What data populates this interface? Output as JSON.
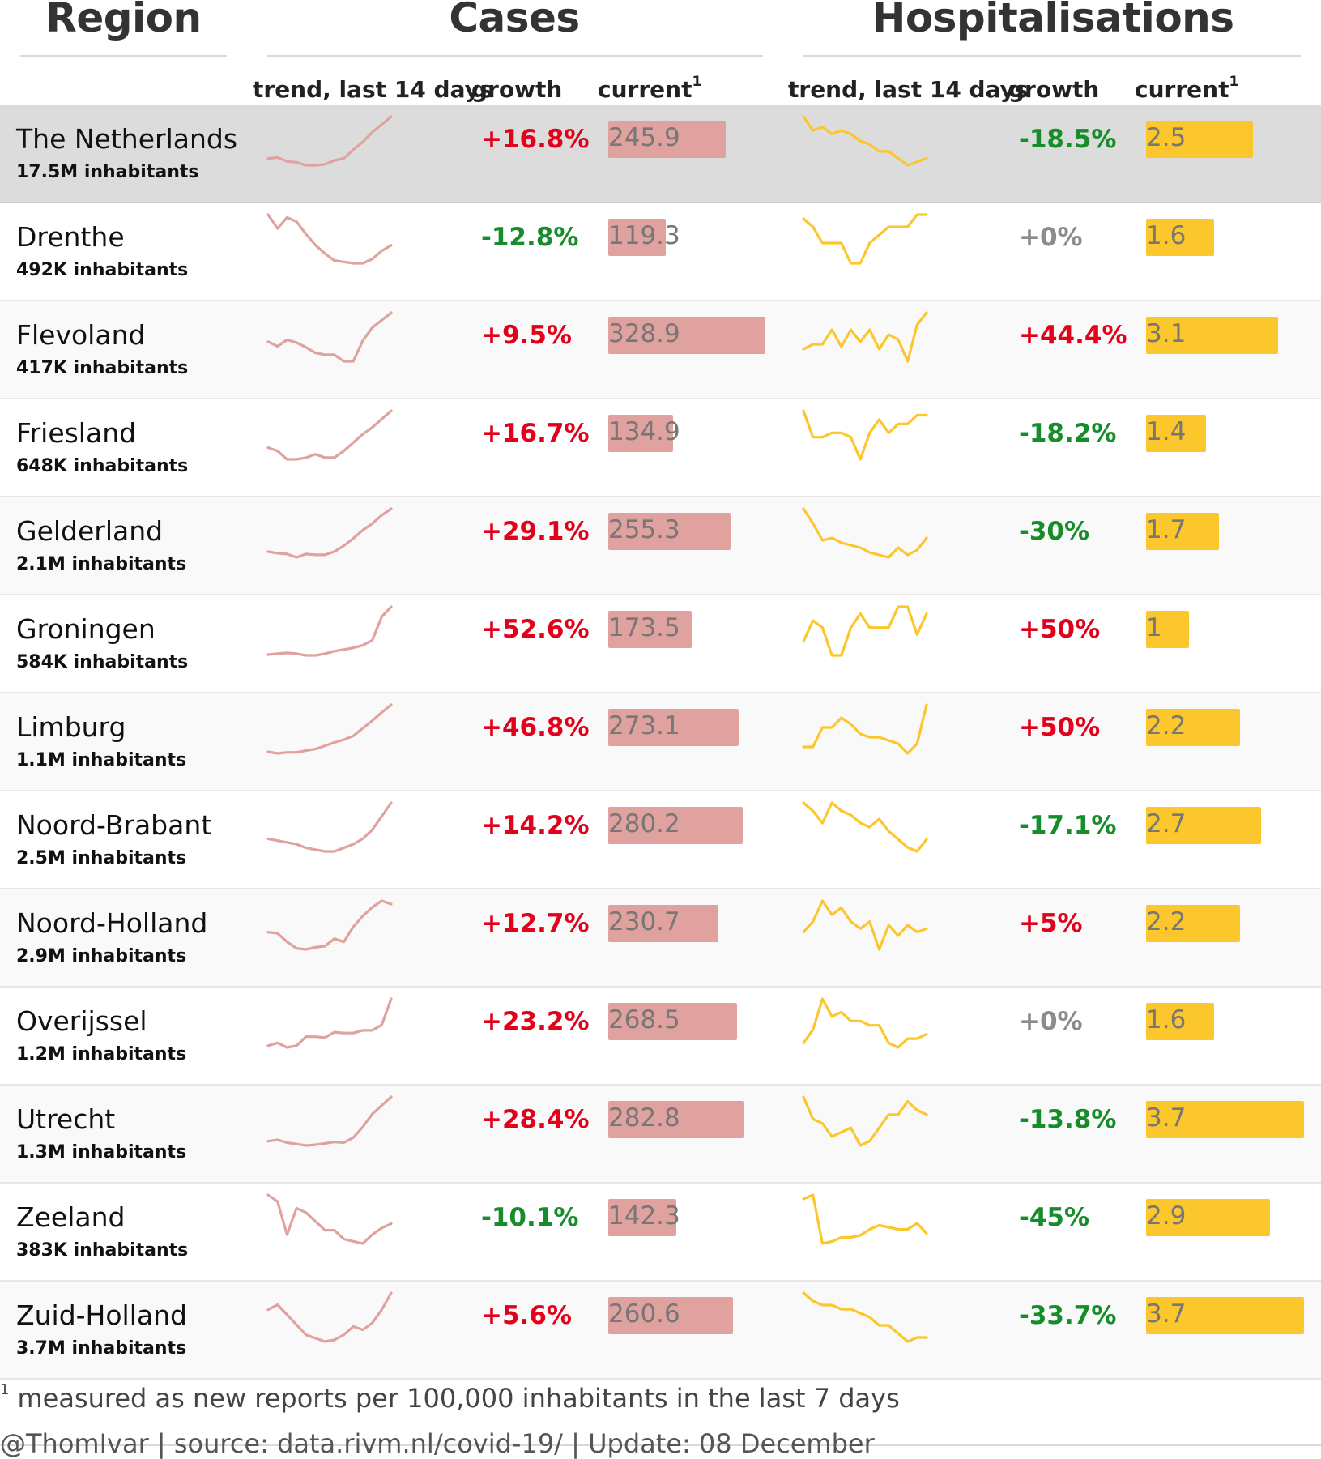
{
  "header": {
    "groups": {
      "region": "Region",
      "cases": "Cases",
      "hosp": "Hospitalisations"
    },
    "columns": {
      "trend": "trend, last 14 days",
      "growth": "growth",
      "current": "current",
      "current_sup": "1"
    }
  },
  "colors": {
    "cases_series": "#dfa29f",
    "hosp_series": "#fcc62d",
    "positive_growth": "#e2001a",
    "negative_growth": "#178c2b",
    "zero_growth": "#8c8c8c",
    "highlight_row": "#dcdcdc"
  },
  "chart_data": {
    "type": "table",
    "bar_max": {
      "cases": 330,
      "hosp": 3.7
    },
    "rows": [
      {
        "region": "The Netherlands",
        "sub": "17.5M inhabitants",
        "highlight": true,
        "cases_growth": "+16.8%",
        "cases_current": 245.9,
        "cases_current_label": "245.9",
        "hosp_growth": "-18.5%",
        "hosp_current": 2.5,
        "hosp_current_label": "2.5",
        "cases_trend": [
          203,
          204,
          200,
          199,
          196,
          196,
          197,
          201,
          203,
          212,
          220,
          230,
          238,
          246
        ],
        "hosp_trend": [
          3.2,
          3.0,
          3.05,
          2.95,
          3.0,
          2.95,
          2.85,
          2.8,
          2.7,
          2.7,
          2.6,
          2.5,
          2.55,
          2.6
        ]
      },
      {
        "region": "Drenthe",
        "sub": "492K inhabitants",
        "cases_growth": "-12.8%",
        "cases_current": 119.3,
        "cases_current_label": "119.3",
        "hosp_growth": "+0%",
        "hosp_current": 1.6,
        "hosp_current_label": "1.6",
        "cases_trend": [
          150,
          140,
          148,
          145,
          136,
          128,
          122,
          117,
          116,
          115,
          115,
          118,
          124,
          128
        ],
        "hosp_trend": [
          1.5,
          1.3,
          0.9,
          0.9,
          0.9,
          0.4,
          0.4,
          0.9,
          1.1,
          1.3,
          1.3,
          1.3,
          1.6,
          1.6
        ]
      },
      {
        "region": "Flevoland",
        "sub": "417K inhabitants",
        "cases_growth": "+9.5%",
        "cases_current": 328.9,
        "cases_current_label": "328.9",
        "hosp_growth": "+44.4%",
        "hosp_current": 3.1,
        "hosp_current_label": "3.1",
        "cases_trend": [
          295,
          290,
          297,
          294,
          289,
          283,
          281,
          281,
          274,
          274,
          296,
          310,
          318,
          326
        ],
        "hosp_trend": [
          1.6,
          1.8,
          1.8,
          2.4,
          1.7,
          2.4,
          1.9,
          2.4,
          1.6,
          2.2,
          2.0,
          1.1,
          2.6,
          3.1
        ]
      },
      {
        "region": "Friesland",
        "sub": "648K inhabitants",
        "cases_growth": "+16.7%",
        "cases_current": 134.9,
        "cases_current_label": "134.9",
        "hosp_growth": "-18.2%",
        "hosp_current": 1.4,
        "hosp_current_label": "1.4",
        "cases_trend": [
          112,
          110,
          105,
          105,
          106,
          108,
          106,
          106,
          110,
          115,
          120,
          124,
          129,
          134
        ],
        "hosp_trend": [
          1.8,
          1.2,
          1.2,
          1.3,
          1.3,
          1.2,
          0.7,
          1.3,
          1.6,
          1.3,
          1.5,
          1.5,
          1.7,
          1.7
        ]
      },
      {
        "region": "Gelderland",
        "sub": "2.1M inhabitants",
        "cases_growth": "+29.1%",
        "cases_current": 255.3,
        "cases_current_label": "255.3",
        "hosp_growth": "-30%",
        "hosp_current": 1.7,
        "hosp_current_label": "1.7",
        "cases_trend": [
          200,
          198,
          197,
          193,
          197,
          196,
          196,
          200,
          207,
          216,
          226,
          234,
          244,
          252
        ],
        "hosp_trend": [
          2.7,
          2.4,
          2.05,
          2.1,
          2.0,
          1.95,
          1.9,
          1.8,
          1.75,
          1.7,
          1.9,
          1.75,
          1.85,
          2.1
        ]
      },
      {
        "region": "Groningen",
        "sub": "584K inhabitants",
        "cases_growth": "+52.6%",
        "cases_current": 173.5,
        "cases_current_label": "173.5",
        "hosp_growth": "+50%",
        "hosp_current": 1,
        "hosp_current_label": "1",
        "cases_trend": [
          115,
          116,
          117,
          116,
          114,
          114,
          116,
          119,
          121,
          123,
          126,
          132,
          160,
          172
        ],
        "hosp_trend": [
          0.6,
          0.9,
          0.8,
          0.4,
          0.4,
          0.8,
          1.0,
          0.8,
          0.8,
          0.8,
          1.1,
          1.1,
          0.7,
          1.0
        ]
      },
      {
        "region": "Limburg",
        "sub": "1.1M inhabitants",
        "cases_growth": "+46.8%",
        "cases_current": 273.1,
        "cases_current_label": "273.1",
        "hosp_growth": "+50%",
        "hosp_current": 2.2,
        "hosp_current_label": "2.2",
        "cases_trend": [
          186,
          183,
          185,
          185,
          188,
          191,
          197,
          203,
          208,
          215,
          229,
          243,
          258,
          272
        ],
        "hosp_trend": [
          1.3,
          1.3,
          1.9,
          1.9,
          2.2,
          2.0,
          1.7,
          1.6,
          1.6,
          1.5,
          1.4,
          1.1,
          1.4,
          2.6
        ]
      },
      {
        "region": "Noord-Brabant",
        "sub": "2.5M inhabitants",
        "cases_growth": "+14.2%",
        "cases_current": 280.2,
        "cases_current_label": "280.2",
        "hosp_growth": "-17.1%",
        "hosp_current": 2.7,
        "hosp_current_label": "2.7",
        "cases_trend": [
          240,
          238,
          236,
          234,
          230,
          228,
          226,
          226,
          230,
          234,
          240,
          250,
          265,
          280
        ],
        "hosp_trend": [
          3.5,
          3.3,
          3.0,
          3.5,
          3.3,
          3.2,
          3.0,
          2.9,
          3.1,
          2.8,
          2.6,
          2.4,
          2.3,
          2.6
        ]
      },
      {
        "region": "Noord-Holland",
        "sub": "2.9M inhabitants",
        "cases_growth": "+12.7%",
        "cases_current": 230.7,
        "cases_current_label": "230.7",
        "hosp_growth": "+5%",
        "hosp_current": 2.2,
        "hosp_current_label": "2.2",
        "cases_trend": [
          205,
          204,
          196,
          190,
          189,
          191,
          192,
          199,
          196,
          210,
          220,
          228,
          234,
          231
        ],
        "hosp_trend": [
          2.0,
          2.3,
          2.9,
          2.5,
          2.7,
          2.3,
          2.1,
          2.3,
          1.5,
          2.2,
          1.9,
          2.2,
          2.0,
          2.1
        ]
      },
      {
        "region": "Overijssel",
        "sub": "1.2M inhabitants",
        "cases_growth": "+23.2%",
        "cases_current": 268.5,
        "cases_current_label": "268.5",
        "hosp_growth": "+0%",
        "hosp_current": 1.6,
        "hosp_current_label": "1.6",
        "cases_trend": [
          210,
          213,
          208,
          210,
          220,
          220,
          219,
          225,
          224,
          224,
          227,
          227,
          233,
          262
        ],
        "hosp_trend": [
          1.3,
          1.6,
          2.3,
          1.9,
          2.0,
          1.8,
          1.8,
          1.7,
          1.7,
          1.3,
          1.2,
          1.4,
          1.4,
          1.5
        ]
      },
      {
        "region": "Utrecht",
        "sub": "1.3M inhabitants",
        "cases_growth": "+28.4%",
        "cases_current": 282.8,
        "cases_current_label": "282.8",
        "hosp_growth": "-13.8%",
        "hosp_current": 3.7,
        "hosp_current_label": "3.7",
        "cases_trend": [
          220,
          222,
          218,
          216,
          214,
          215,
          217,
          219,
          218,
          225,
          240,
          258,
          270,
          282
        ],
        "hosp_trend": [
          3.2,
          2.7,
          2.6,
          2.3,
          2.4,
          2.5,
          2.1,
          2.2,
          2.5,
          2.8,
          2.8,
          3.1,
          2.9,
          2.8
        ]
      },
      {
        "region": "Zeeland",
        "sub": "383K inhabitants",
        "cases_growth": "-10.1%",
        "cases_current": 142.3,
        "cases_current_label": "142.3",
        "hosp_growth": "-45%",
        "hosp_current": 2.9,
        "hosp_current_label": "2.9",
        "cases_trend": [
          158,
          155,
          140,
          152,
          150,
          146,
          142,
          142,
          138,
          137,
          136,
          140,
          143,
          145
        ],
        "hosp_trend": [
          5.5,
          5.7,
          3.3,
          3.4,
          3.6,
          3.6,
          3.7,
          4.0,
          4.2,
          4.1,
          4.0,
          4.0,
          4.3,
          3.8
        ]
      },
      {
        "region": "Zuid-Holland",
        "sub": "3.7M inhabitants",
        "cases_growth": "+5.6%",
        "cases_current": 260.6,
        "cases_current_label": "260.6",
        "hosp_growth": "-33.7%",
        "hosp_current": 3.7,
        "hosp_current_label": "3.7",
        "cases_trend": [
          255,
          258,
          252,
          246,
          240,
          238,
          236,
          237,
          240,
          245,
          243,
          247,
          255,
          265
        ],
        "hosp_trend": [
          4.4,
          4.2,
          4.1,
          4.1,
          4.0,
          4.0,
          3.9,
          3.8,
          3.6,
          3.6,
          3.4,
          3.2,
          3.3,
          3.3
        ]
      }
    ]
  },
  "footer": {
    "footnote_sup": "1",
    "footnote": "measured as new reports per 100,000 inhabitants in the last 7 days",
    "credit": "@ThomIvar | source: data.rivm.nl/covid-19/ | Update: 08 December"
  }
}
